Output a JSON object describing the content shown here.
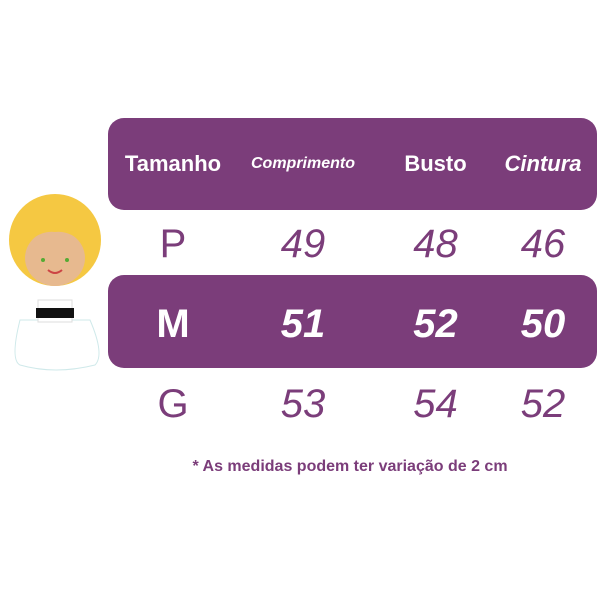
{
  "header": [
    "Tamanho",
    "Comprimento",
    "Busto",
    "Cintura"
  ],
  "rows": [
    [
      "P",
      "49",
      "48",
      "46"
    ],
    [
      "M",
      "51",
      "52",
      "50"
    ],
    [
      "G",
      "53",
      "54",
      "52"
    ]
  ],
  "note": "* As medidas podem ter variação de 2 cm",
  "colors": {
    "accent": "#7b3d7a"
  },
  "illustration": "girl-in-white-dress"
}
